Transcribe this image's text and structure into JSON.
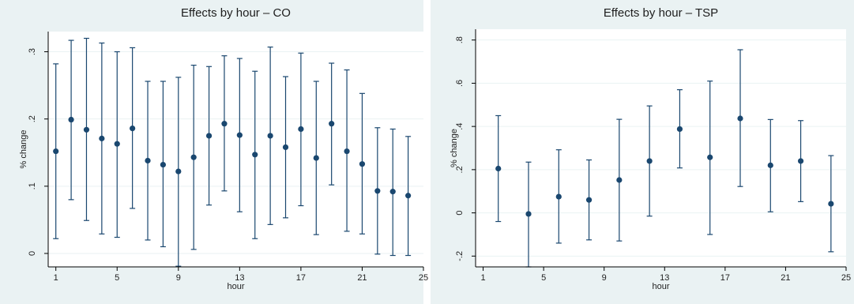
{
  "chart_data": [
    {
      "type": "scatter",
      "title": "Effects by hour – CO",
      "xlabel": "hour",
      "ylabel": "% change",
      "xlim": [
        0.5,
        25
      ],
      "ylim": [
        -0.02,
        0.33
      ],
      "x_ticks": [
        1,
        5,
        9,
        13,
        17,
        21,
        25
      ],
      "x_tick_labels": [
        "1",
        "5",
        "9",
        "13",
        "17",
        "21",
        "25"
      ],
      "y_ticks": [
        0,
        0.1,
        0.2,
        0.3
      ],
      "y_tick_labels": [
        "0",
        ".1",
        ".2",
        ".3"
      ],
      "grid": true,
      "legend": "none",
      "colors": {
        "marker": "#1a476f",
        "grid": "#eaf2f3",
        "plot_bg": "#ffffff",
        "outer_bg": "#eaf2f3"
      },
      "series": [
        {
          "x": [
            1,
            2,
            3,
            4,
            5,
            6,
            7,
            8,
            9,
            10,
            11,
            12,
            13,
            14,
            15,
            16,
            17,
            18,
            19,
            20,
            21,
            22,
            23,
            24
          ],
          "y": [
            0.152,
            0.199,
            0.184,
            0.171,
            0.163,
            0.186,
            0.138,
            0.132,
            0.122,
            0.143,
            0.175,
            0.193,
            0.176,
            0.147,
            0.175,
            0.158,
            0.185,
            0.142,
            0.193,
            0.152,
            0.133,
            0.093,
            0.092,
            0.086
          ],
          "lower": [
            0.022,
            0.08,
            0.049,
            0.029,
            0.024,
            0.067,
            0.02,
            0.01,
            -0.019,
            0.006,
            0.072,
            0.093,
            0.062,
            0.022,
            0.043,
            0.053,
            0.071,
            0.028,
            0.102,
            0.033,
            0.029,
            -0.001,
            -0.003,
            -0.003
          ],
          "upper": [
            0.282,
            0.317,
            0.32,
            0.313,
            0.3,
            0.306,
            0.256,
            0.256,
            0.262,
            0.28,
            0.278,
            0.294,
            0.29,
            0.271,
            0.307,
            0.263,
            0.298,
            0.256,
            0.283,
            0.273,
            0.238,
            0.187,
            0.185,
            0.174
          ]
        }
      ]
    },
    {
      "type": "scatter",
      "title": "Effects by hour – TSP",
      "xlabel": "hour",
      "ylabel": "% change",
      "xlim": [
        0.5,
        25
      ],
      "ylim": [
        -0.25,
        0.85
      ],
      "x_ticks": [
        1,
        5,
        9,
        13,
        17,
        21,
        25
      ],
      "x_tick_labels": [
        "1",
        "5",
        "9",
        "13",
        "17",
        "21",
        "25"
      ],
      "y_ticks": [
        -0.2,
        0,
        0.2,
        0.4,
        0.6,
        0.8
      ],
      "y_tick_labels": [
        "-.2",
        "0",
        ".2",
        ".4",
        ".6",
        ".8"
      ],
      "grid": true,
      "legend": "none",
      "colors": {
        "marker": "#1a476f",
        "grid": "#eaf2f3",
        "plot_bg": "#ffffff",
        "outer_bg": "#eaf2f3"
      },
      "series": [
        {
          "x": [
            2,
            4,
            6,
            8,
            10,
            12,
            14,
            16,
            18,
            20,
            22,
            24
          ],
          "y": [
            0.205,
            -0.005,
            0.075,
            0.06,
            0.152,
            0.24,
            0.388,
            0.257,
            0.437,
            0.22,
            0.24,
            0.042
          ],
          "lower": [
            -0.04,
            -0.25,
            -0.14,
            -0.125,
            -0.13,
            -0.015,
            0.208,
            -0.1,
            0.122,
            0.005,
            0.052,
            -0.18
          ],
          "upper": [
            0.45,
            0.235,
            0.292,
            0.245,
            0.433,
            0.495,
            0.57,
            0.61,
            0.755,
            0.432,
            0.427,
            0.265
          ]
        }
      ]
    }
  ]
}
